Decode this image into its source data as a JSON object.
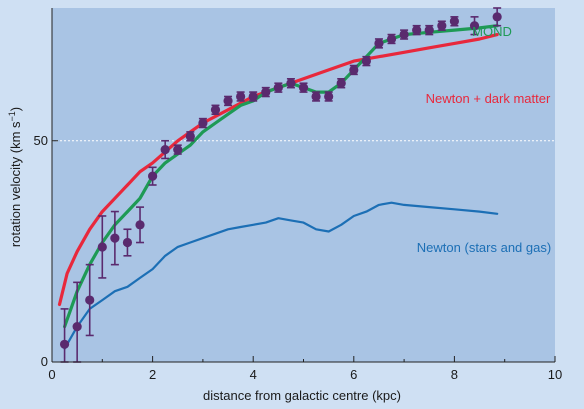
{
  "chart_data": {
    "type": "line",
    "title": "",
    "xlabel": "distance from galactic centre (kpc)",
    "ylabel": "rotation velocity (km s",
    "ylabel_sup": "−1",
    "ylabel_close": ")",
    "xlim": [
      0,
      10
    ],
    "ylim": [
      0,
      80
    ],
    "x_ticks": [
      "0",
      "2",
      "4",
      "6",
      "8",
      "10"
    ],
    "y_ticks": [
      "0",
      "50"
    ],
    "grid": "dashed horizontal line at 50",
    "colors": {
      "plot_bg": "#a9c4e4",
      "outer_bg": "#cfe0f3",
      "mond": "#1e9a55",
      "dark_matter": "#e8283c",
      "newton": "#1c6fb5",
      "points": "#5a2a6e"
    },
    "series": [
      {
        "name": "MOND",
        "key": "mond",
        "x": [
          0.25,
          0.5,
          0.75,
          1.0,
          1.25,
          1.5,
          1.75,
          2.0,
          2.25,
          2.5,
          2.75,
          3.0,
          3.25,
          3.5,
          3.75,
          4.0,
          4.25,
          4.5,
          4.75,
          5.0,
          5.25,
          5.5,
          5.75,
          6.0,
          6.25,
          6.5,
          6.75,
          7.0,
          7.5,
          8.0,
          8.5,
          8.85
        ],
        "y": [
          8,
          16,
          22,
          27,
          31,
          34,
          37,
          42,
          45,
          47,
          49,
          52,
          54,
          56,
          58,
          59,
          61,
          62,
          63,
          62,
          61,
          61,
          63,
          66,
          69,
          72,
          73,
          74,
          74.5,
          75,
          75.5,
          76
        ]
      },
      {
        "name": "Newton + dark matter",
        "key": "dark_matter",
        "x": [
          0.15,
          0.3,
          0.5,
          0.75,
          1.0,
          1.25,
          1.5,
          1.75,
          2.0,
          2.5,
          3.0,
          3.5,
          4.0,
          4.5,
          5.0,
          5.5,
          6.0,
          6.5,
          7.0,
          7.5,
          8.0,
          8.5,
          8.85
        ],
        "y": [
          13,
          20,
          25,
          30,
          34,
          37,
          40,
          43,
          45,
          50,
          54,
          57,
          60,
          62,
          64,
          66,
          68,
          69,
          70,
          71,
          72,
          73,
          74
        ]
      },
      {
        "name": "Newton (stars and gas)",
        "key": "newton",
        "x": [
          0.25,
          0.5,
          0.75,
          1.0,
          1.25,
          1.5,
          1.75,
          2.0,
          2.25,
          2.5,
          2.75,
          3.0,
          3.25,
          3.5,
          3.75,
          4.0,
          4.25,
          4.5,
          4.75,
          5.0,
          5.25,
          5.5,
          5.75,
          6.0,
          6.25,
          6.5,
          6.75,
          7.0,
          7.5,
          8.0,
          8.5,
          8.85
        ],
        "y": [
          3,
          8,
          12,
          14,
          16,
          17,
          19,
          21,
          24,
          26,
          27,
          28,
          29,
          30,
          30.5,
          31,
          31.5,
          32.5,
          32,
          31.5,
          30,
          29.5,
          31,
          33,
          34,
          35.5,
          36,
          35.5,
          35,
          34.5,
          34,
          33.5
        ]
      }
    ],
    "points": {
      "x": [
        0.25,
        0.5,
        0.75,
        1.0,
        1.25,
        1.5,
        1.75,
        2.0,
        2.25,
        2.5,
        2.75,
        3.0,
        3.25,
        3.5,
        3.75,
        4.0,
        4.25,
        4.5,
        4.75,
        5.0,
        5.25,
        5.5,
        5.75,
        6.0,
        6.25,
        6.5,
        6.75,
        7.0,
        7.25,
        7.5,
        7.75,
        8.0,
        8.4,
        8.85
      ],
      "y": [
        4,
        8,
        14,
        26,
        28,
        27,
        31,
        42,
        48,
        48,
        51,
        54,
        57,
        59,
        60,
        60,
        61,
        62,
        63,
        62,
        60,
        60,
        63,
        66,
        68,
        72,
        73,
        74,
        75,
        75,
        76,
        77,
        76,
        78
      ],
      "err": [
        8,
        10,
        8,
        7,
        6,
        3,
        4,
        2,
        2,
        1,
        1,
        1,
        1,
        1,
        1,
        1,
        1,
        1,
        1,
        1,
        1,
        1,
        1,
        1,
        1,
        1,
        1,
        1,
        1,
        1,
        1,
        1,
        2,
        2
      ]
    }
  }
}
